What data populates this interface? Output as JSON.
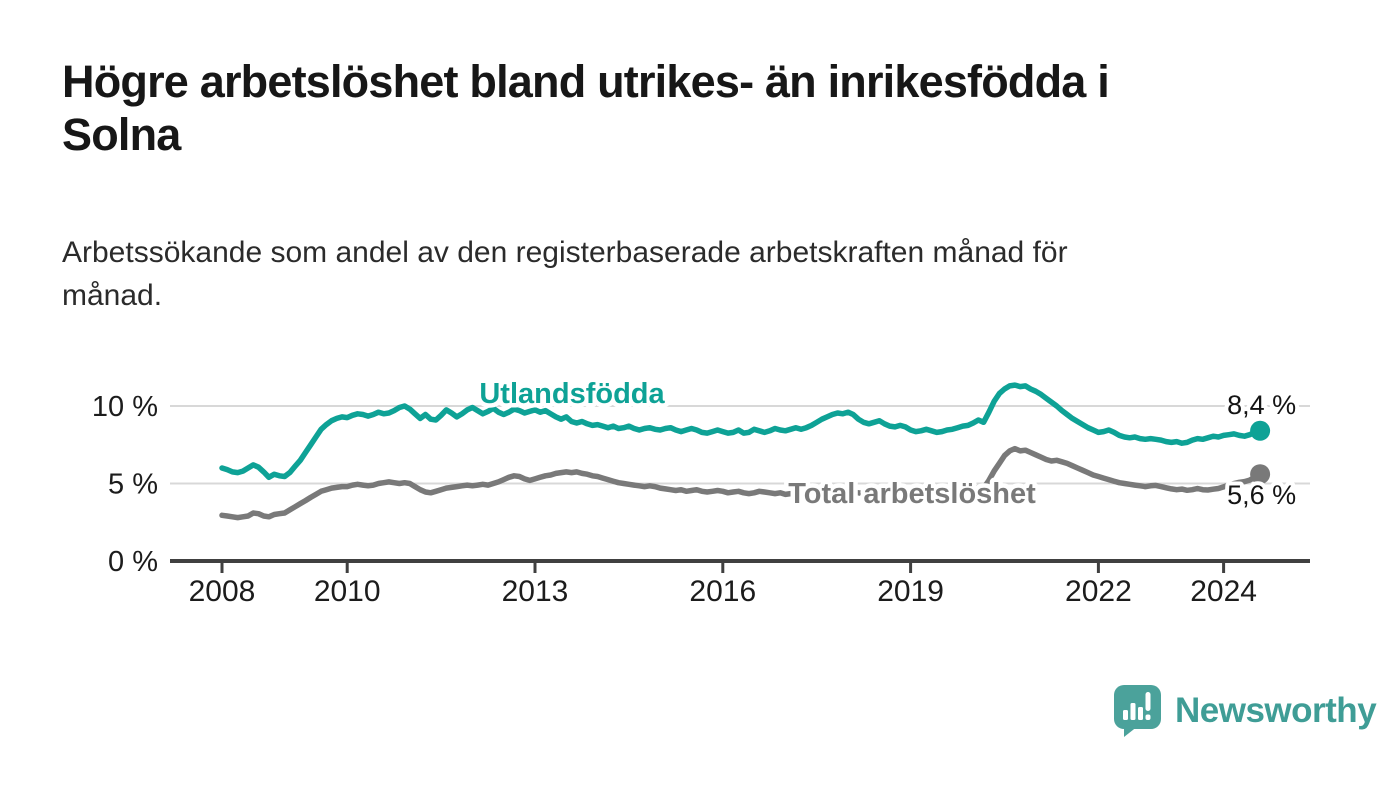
{
  "header": {
    "title_line1": "Högre arbetslöshet bland utrikes- än inrikesfödda i",
    "title_line2": "Solna",
    "subtitle_line1": "Arbetssökande som andel av den registerbaserade arbetskraften månad för",
    "subtitle_line2": "månad."
  },
  "footer": {
    "brand": "Newsworthy"
  },
  "colors": {
    "foreign_born_line": "#0ea296",
    "total_line": "#797979",
    "grid": "#d8d8d8",
    "axis": "#404040",
    "tick_text": "#1c1c1c",
    "value_label_text": "#141414",
    "logo_bubble": "#4ba29b",
    "logo_text": "#3f9d96"
  },
  "chart_data": {
    "type": "line",
    "unit": "%",
    "frequency": "monthly",
    "x_start_year": 2008,
    "x_end_label": "2024",
    "grid_on": [
      5,
      10
    ],
    "ylim": [
      0,
      13
    ],
    "x_ticks": [
      {
        "year": 2008,
        "label": "2008"
      },
      {
        "year": 2010,
        "label": "2010"
      },
      {
        "year": 2013,
        "label": "2013"
      },
      {
        "year": 2016,
        "label": "2016"
      },
      {
        "year": 2019,
        "label": "2019"
      },
      {
        "year": 2022,
        "label": "2022"
      },
      {
        "year": 2024,
        "label": "2024"
      }
    ],
    "y_ticks": [
      {
        "value": 0,
        "label": "0 %"
      },
      {
        "value": 5,
        "label": "5 %"
      },
      {
        "value": 10,
        "label": "10 %"
      }
    ],
    "series": [
      {
        "name": "Utlandsfödda",
        "color": "#0ea296",
        "end_label": "8,4 %",
        "end_value": 8.4,
        "values": [
          6.0,
          5.9,
          5.75,
          5.7,
          5.8,
          6.0,
          6.2,
          6.05,
          5.75,
          5.4,
          5.6,
          5.5,
          5.45,
          5.7,
          6.1,
          6.5,
          7.0,
          7.5,
          8.0,
          8.5,
          8.8,
          9.05,
          9.2,
          9.3,
          9.25,
          9.4,
          9.5,
          9.45,
          9.35,
          9.45,
          9.6,
          9.5,
          9.55,
          9.7,
          9.9,
          10.0,
          9.8,
          9.5,
          9.2,
          9.45,
          9.15,
          9.1,
          9.4,
          9.75,
          9.55,
          9.3,
          9.5,
          9.75,
          9.9,
          9.7,
          9.5,
          9.65,
          9.85,
          9.6,
          9.45,
          9.6,
          9.8,
          9.7,
          9.55,
          9.65,
          9.75,
          9.6,
          9.7,
          9.5,
          9.3,
          9.15,
          9.3,
          9.0,
          8.9,
          9.0,
          8.85,
          8.75,
          8.8,
          8.7,
          8.6,
          8.7,
          8.55,
          8.6,
          8.7,
          8.55,
          8.45,
          8.55,
          8.6,
          8.5,
          8.45,
          8.55,
          8.6,
          8.45,
          8.35,
          8.45,
          8.55,
          8.45,
          8.3,
          8.25,
          8.35,
          8.45,
          8.35,
          8.25,
          8.3,
          8.45,
          8.25,
          8.3,
          8.5,
          8.4,
          8.3,
          8.4,
          8.55,
          8.45,
          8.4,
          8.5,
          8.6,
          8.5,
          8.6,
          8.75,
          8.95,
          9.15,
          9.3,
          9.45,
          9.55,
          9.5,
          9.6,
          9.45,
          9.15,
          8.95,
          8.85,
          8.95,
          9.05,
          8.85,
          8.7,
          8.65,
          8.75,
          8.65,
          8.45,
          8.35,
          8.4,
          8.5,
          8.4,
          8.3,
          8.35,
          8.45,
          8.5,
          8.6,
          8.7,
          8.75,
          8.9,
          9.1,
          8.95,
          9.6,
          10.3,
          10.8,
          11.1,
          11.3,
          11.35,
          11.25,
          11.3,
          11.1,
          10.95,
          10.75,
          10.5,
          10.25,
          10.0,
          9.7,
          9.45,
          9.2,
          9.0,
          8.8,
          8.6,
          8.45,
          8.3,
          8.35,
          8.45,
          8.3,
          8.1,
          8.0,
          7.95,
          8.0,
          7.9,
          7.85,
          7.9,
          7.85,
          7.8,
          7.7,
          7.65,
          7.7,
          7.6,
          7.65,
          7.8,
          7.9,
          7.85,
          7.95,
          8.05,
          8.0,
          8.1,
          8.15,
          8.2,
          8.1,
          8.05,
          8.15,
          8.3,
          8.4
        ]
      },
      {
        "name": "Total arbetslöshet",
        "color": "#797979",
        "end_label": "5,6 %",
        "end_value": 5.6,
        "values": [
          2.95,
          2.9,
          2.85,
          2.8,
          2.85,
          2.9,
          3.1,
          3.05,
          2.9,
          2.85,
          3.0,
          3.05,
          3.1,
          3.3,
          3.5,
          3.7,
          3.9,
          4.1,
          4.3,
          4.5,
          4.6,
          4.7,
          4.75,
          4.8,
          4.8,
          4.9,
          4.95,
          4.9,
          4.85,
          4.9,
          5.0,
          5.05,
          5.1,
          5.05,
          5.0,
          5.05,
          5.0,
          4.8,
          4.6,
          4.45,
          4.4,
          4.5,
          4.6,
          4.7,
          4.75,
          4.8,
          4.85,
          4.9,
          4.85,
          4.9,
          4.95,
          4.9,
          5.0,
          5.1,
          5.25,
          5.4,
          5.5,
          5.45,
          5.3,
          5.2,
          5.3,
          5.4,
          5.5,
          5.55,
          5.65,
          5.7,
          5.75,
          5.7,
          5.75,
          5.65,
          5.6,
          5.5,
          5.45,
          5.35,
          5.25,
          5.15,
          5.05,
          5.0,
          4.95,
          4.9,
          4.85,
          4.8,
          4.85,
          4.8,
          4.7,
          4.65,
          4.6,
          4.55,
          4.6,
          4.5,
          4.55,
          4.6,
          4.5,
          4.45,
          4.5,
          4.55,
          4.5,
          4.4,
          4.45,
          4.5,
          4.4,
          4.35,
          4.4,
          4.5,
          4.45,
          4.4,
          4.35,
          4.4,
          4.3,
          4.35,
          4.3,
          4.35,
          4.4,
          4.45,
          4.5,
          4.45,
          4.4,
          4.45,
          4.5,
          4.45,
          4.5,
          4.45,
          4.4,
          4.35,
          4.3,
          4.35,
          4.4,
          4.35,
          4.3,
          4.25,
          4.3,
          4.35,
          4.3,
          4.25,
          4.2,
          4.25,
          4.3,
          4.35,
          4.4,
          4.35,
          4.4,
          4.45,
          4.5,
          4.55,
          4.65,
          4.75,
          4.7,
          5.2,
          5.8,
          6.3,
          6.8,
          7.1,
          7.25,
          7.1,
          7.15,
          7.0,
          6.85,
          6.7,
          6.55,
          6.45,
          6.5,
          6.4,
          6.3,
          6.15,
          6.0,
          5.85,
          5.7,
          5.55,
          5.45,
          5.35,
          5.25,
          5.15,
          5.05,
          5.0,
          4.95,
          4.9,
          4.85,
          4.8,
          4.85,
          4.88,
          4.8,
          4.72,
          4.65,
          4.6,
          4.64,
          4.56,
          4.6,
          4.68,
          4.6,
          4.58,
          4.63,
          4.68,
          4.78,
          4.9,
          5.0,
          5.08,
          5.12,
          5.22,
          5.4,
          5.6
        ]
      }
    ]
  }
}
